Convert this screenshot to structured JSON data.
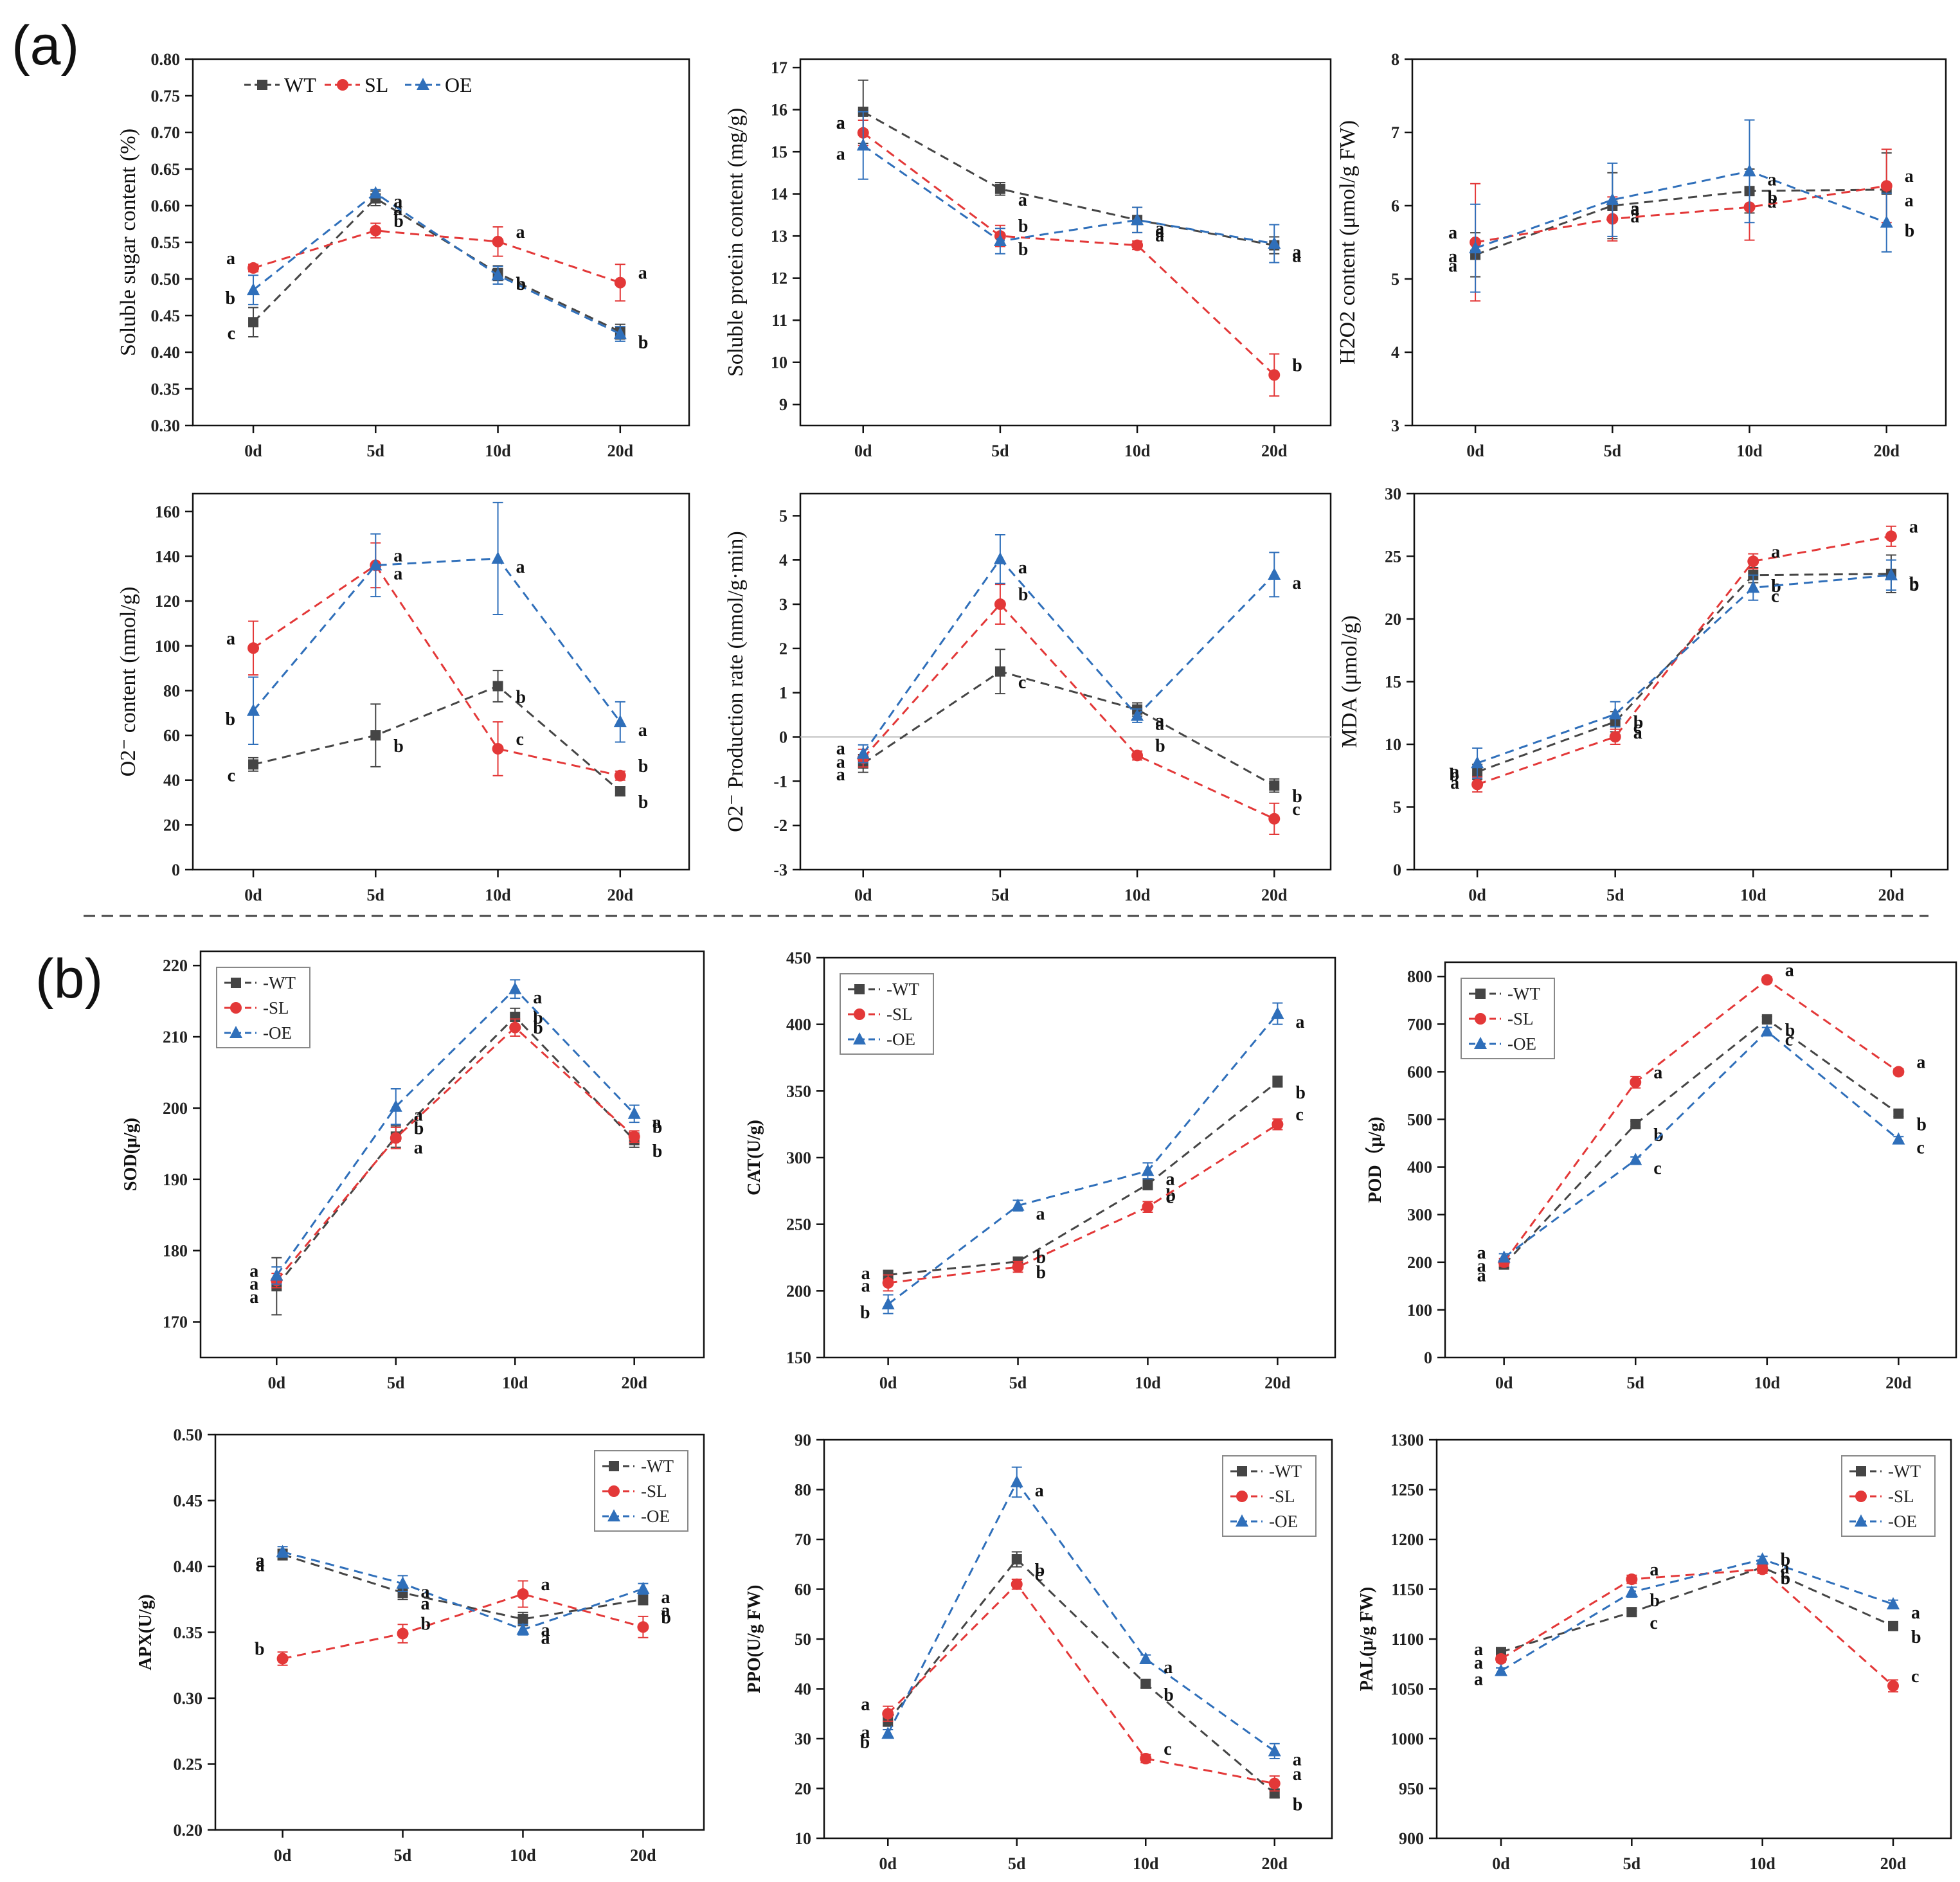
{
  "panel_labels": {
    "a": "(a)",
    "b": "(b)"
  },
  "colors": {
    "WT": "#454545",
    "SL": "#e33838",
    "OE": "#2f6fba",
    "axis": "#111111",
    "zero_line": "#bbbbbb",
    "divider": "#444444"
  },
  "chart_data": [
    {
      "type": "line",
      "title": "",
      "xlabel": "",
      "ylabel": "Soluble sugar content (%)",
      "categories": [
        "0d",
        "5d",
        "10d",
        "20d"
      ],
      "ylim": [
        0.3,
        0.8
      ],
      "yticks": [
        "0.30",
        "0.35",
        "0.40",
        "0.45",
        "0.50",
        "0.55",
        "0.60",
        "0.65",
        "0.70",
        "0.75",
        "0.80"
      ],
      "series": [
        {
          "name": "WT",
          "values": [
            0.441,
            0.61,
            0.508,
            0.428
          ],
          "errors": [
            0.02,
            0.01,
            0.01,
            0.01
          ],
          "letters": [
            "c",
            "a",
            "b",
            "b"
          ]
        },
        {
          "name": "SL",
          "values": [
            0.515,
            0.566,
            0.551,
            0.495
          ],
          "errors": [
            0.005,
            0.01,
            0.02,
            0.025
          ],
          "letters": [
            "a",
            "b",
            "a",
            "a"
          ]
        },
        {
          "name": "OE",
          "values": [
            0.485,
            0.617,
            0.505,
            0.425
          ],
          "errors": [
            0.02,
            0.005,
            0.012,
            0.01
          ],
          "letters": [
            "b",
            "a",
            "b",
            "b"
          ]
        }
      ],
      "legend": {
        "position": "top-inline",
        "labels": [
          "WT",
          "SL",
          "OE"
        ]
      }
    },
    {
      "type": "line",
      "title": "",
      "xlabel": "",
      "ylabel": "Soluble protein content (mg/g)",
      "categories": [
        "0d",
        "5d",
        "10d",
        "20d"
      ],
      "ylim": [
        8.5,
        17.2
      ],
      "yticks": [
        "9",
        "10",
        "11",
        "12",
        "13",
        "14",
        "15",
        "16",
        "17"
      ],
      "series": [
        {
          "name": "WT",
          "values": [
            15.95,
            14.12,
            13.38,
            12.78
          ],
          "errors": [
            0.75,
            0.15,
            0.3,
            0.2
          ],
          "letters": [
            "a",
            "a",
            "a",
            "a"
          ]
        },
        {
          "name": "SL",
          "values": [
            15.45,
            13.0,
            12.78,
            9.7
          ],
          "errors": [
            0.3,
            0.25,
            0.1,
            0.5
          ],
          "letters": [
            "a",
            "b",
            "a",
            "b"
          ]
        },
        {
          "name": "OE",
          "values": [
            15.15,
            12.88,
            13.38,
            12.82
          ],
          "errors": [
            0.8,
            0.3,
            0.3,
            0.45
          ],
          "letters": [
            "a",
            "b",
            "a",
            "a"
          ]
        }
      ]
    },
    {
      "type": "line",
      "title": "",
      "xlabel": "",
      "ylabel": "H2O2 content (μmol/g FW)",
      "categories": [
        "0d",
        "5d",
        "10d",
        "20d"
      ],
      "ylim": [
        3,
        8
      ],
      "yticks": [
        "3",
        "4",
        "5",
        "6",
        "7",
        "8"
      ],
      "series": [
        {
          "name": "WT",
          "values": [
            5.33,
            6.0,
            6.2,
            6.22
          ],
          "errors": [
            0.3,
            0.45,
            0.3,
            0.5
          ],
          "letters": [
            "a",
            "a",
            "a",
            "a"
          ]
        },
        {
          "name": "SL",
          "values": [
            5.5,
            5.82,
            5.98,
            6.27
          ],
          "errors": [
            0.8,
            0.3,
            0.45,
            0.5
          ],
          "letters": [
            "a",
            "a",
            "b",
            "a"
          ]
        },
        {
          "name": "OE",
          "values": [
            5.42,
            6.08,
            6.47,
            5.77
          ],
          "errors": [
            0.6,
            0.5,
            0.7,
            0.4
          ],
          "letters": [
            "a",
            "a",
            "a",
            "b"
          ]
        }
      ]
    },
    {
      "type": "line",
      "title": "",
      "xlabel": "",
      "ylabel": "O2⁻ content (nmol/g)",
      "categories": [
        "0d",
        "5d",
        "10d",
        "20d"
      ],
      "ylim": [
        0,
        168
      ],
      "yticks": [
        "0",
        "20",
        "40",
        "60",
        "80",
        "100",
        "120",
        "140",
        "160"
      ],
      "series": [
        {
          "name": "WT",
          "values": [
            47,
            60,
            82,
            35
          ],
          "errors": [
            3,
            14,
            7,
            2
          ],
          "letters": [
            "c",
            "b",
            "b",
            "b"
          ]
        },
        {
          "name": "SL",
          "values": [
            99,
            136,
            54,
            42
          ],
          "errors": [
            12,
            10,
            12,
            2
          ],
          "letters": [
            "a",
            "a",
            "c",
            "b"
          ]
        },
        {
          "name": "OE",
          "values": [
            71,
            136,
            139,
            66
          ],
          "errors": [
            15,
            14,
            25,
            9
          ],
          "letters": [
            "b",
            "a",
            "a",
            "a"
          ]
        }
      ]
    },
    {
      "type": "line",
      "title": "",
      "xlabel": "",
      "ylabel": "O2⁻ Production rate (nmol/g·min)",
      "categories": [
        "0d",
        "5d",
        "10d",
        "20d"
      ],
      "ylim": [
        -3,
        5.5
      ],
      "yticks": [
        "-3",
        "-2",
        "-1",
        "0",
        "1",
        "2",
        "3",
        "4",
        "5"
      ],
      "zero_line": true,
      "series": [
        {
          "name": "WT",
          "values": [
            -0.6,
            1.48,
            0.62,
            -1.1
          ],
          "errors": [
            0.2,
            0.5,
            0.15,
            0.15
          ],
          "letters": [
            "a",
            "c",
            "a",
            "b"
          ]
        },
        {
          "name": "SL",
          "values": [
            -0.48,
            3.0,
            -0.42,
            -1.85
          ],
          "errors": [
            0.2,
            0.45,
            0.1,
            0.35
          ],
          "letters": [
            "a",
            "b",
            "b",
            "c"
          ]
        },
        {
          "name": "OE",
          "values": [
            -0.38,
            4.02,
            0.48,
            3.67
          ],
          "errors": [
            0.2,
            0.55,
            0.15,
            0.5
          ],
          "letters": [
            "a",
            "a",
            "a",
            "a"
          ]
        }
      ]
    },
    {
      "type": "line",
      "title": "",
      "xlabel": "",
      "ylabel": "MDA (μmol/g)",
      "categories": [
        "0d",
        "5d",
        "10d",
        "20d"
      ],
      "ylim": [
        0,
        30
      ],
      "yticks": [
        "0",
        "5",
        "10",
        "15",
        "20",
        "25",
        "30"
      ],
      "series": [
        {
          "name": "WT",
          "values": [
            7.8,
            11.8,
            23.5,
            23.6
          ],
          "errors": [
            0.6,
            0.8,
            0.6,
            1.5
          ],
          "letters": [
            "a",
            "a",
            "b",
            "b"
          ]
        },
        {
          "name": "SL",
          "values": [
            6.8,
            10.6,
            24.6,
            26.6
          ],
          "errors": [
            0.6,
            0.6,
            0.6,
            0.8
          ],
          "letters": [
            "b",
            "c",
            "a",
            "a"
          ]
        },
        {
          "name": "OE",
          "values": [
            8.5,
            12.4,
            22.5,
            23.5
          ],
          "errors": [
            1.2,
            1.0,
            1.0,
            1.2
          ],
          "letters": [
            "a",
            "b",
            "c",
            "b"
          ]
        }
      ]
    },
    {
      "type": "line",
      "title": "",
      "xlabel": "",
      "ylabel": "SOD(μ/g)",
      "categories": [
        "0d",
        "5d",
        "10d",
        "20d"
      ],
      "ylim": [
        165,
        222
      ],
      "yticks": [
        "170",
        "180",
        "190",
        "200",
        "210",
        "220"
      ],
      "series": [
        {
          "name": "WT",
          "values": [
            175,
            196,
            212.8,
            195.5
          ],
          "errors": [
            4,
            1.5,
            1.2,
            1
          ],
          "letters": [
            "a",
            "a",
            "b",
            "b"
          ]
        },
        {
          "name": "SL",
          "values": [
            175.8,
            195.8,
            211.3,
            196
          ],
          "errors": [
            1,
            1.5,
            1.2,
            0.8
          ],
          "letters": [
            "a",
            "b",
            "b",
            "b"
          ]
        },
        {
          "name": "OE",
          "values": [
            176.5,
            200.2,
            216.7,
            199.2
          ],
          "errors": [
            1.2,
            2.5,
            1.3,
            1.2
          ],
          "letters": [
            "a",
            "a",
            "a",
            "a"
          ]
        }
      ],
      "legend": {
        "position": "top-left",
        "labels": [
          "WT",
          "SL",
          "OE"
        ]
      }
    },
    {
      "type": "line",
      "title": "",
      "xlabel": "",
      "ylabel": "CAT(U/g)",
      "categories": [
        "0d",
        "5d",
        "10d",
        "20d"
      ],
      "ylim": [
        150,
        450
      ],
      "yticks": [
        "150",
        "200",
        "250",
        "300",
        "350",
        "400",
        "450"
      ],
      "series": [
        {
          "name": "WT",
          "values": [
            212,
            222,
            280,
            357
          ],
          "errors": [
            3,
            3,
            4,
            4
          ],
          "letters": [
            "a",
            "b",
            "b",
            "b"
          ]
        },
        {
          "name": "SL",
          "values": [
            206,
            218,
            263,
            325
          ],
          "errors": [
            6,
            4,
            4,
            4
          ],
          "letters": [
            "a",
            "b",
            "c",
            "c"
          ]
        },
        {
          "name": "OE",
          "values": [
            190,
            264,
            290,
            408
          ],
          "errors": [
            7,
            4,
            6,
            8
          ],
          "letters": [
            "b",
            "a",
            "a",
            "a"
          ]
        }
      ],
      "legend": {
        "position": "top-left",
        "labels": [
          "WT",
          "SL",
          "OE"
        ]
      }
    },
    {
      "type": "line",
      "title": "",
      "xlabel": "",
      "ylabel": "POD（μ/g)",
      "categories": [
        "0d",
        "5d",
        "10d",
        "20d"
      ],
      "ylim": [
        0,
        830
      ],
      "yticks": [
        "0",
        "100",
        "200",
        "300",
        "400",
        "500",
        "600",
        "700",
        "800"
      ],
      "series": [
        {
          "name": "WT",
          "values": [
            195,
            490,
            710,
            512
          ],
          "errors": [
            6,
            6,
            6,
            6
          ],
          "letters": [
            "a",
            "b",
            "b",
            "b"
          ]
        },
        {
          "name": "SL",
          "values": [
            200,
            578,
            793,
            600
          ],
          "errors": [
            8,
            12,
            6,
            6
          ],
          "letters": [
            "a",
            "a",
            "a",
            "a"
          ]
        },
        {
          "name": "OE",
          "values": [
            210,
            415,
            685,
            458
          ],
          "errors": [
            8,
            6,
            8,
            6
          ],
          "letters": [
            "a",
            "c",
            "c",
            "c"
          ]
        }
      ],
      "legend": {
        "position": "top-left",
        "labels": [
          "WT",
          "SL",
          "OE"
        ]
      }
    },
    {
      "type": "line",
      "title": "",
      "xlabel": "",
      "ylabel": "APX(U/g)",
      "categories": [
        "0d",
        "5d",
        "10d",
        "20d"
      ],
      "ylim": [
        0.2,
        0.5
      ],
      "yticks": [
        "0.20",
        "0.25",
        "0.30",
        "0.35",
        "0.40",
        "0.45",
        "0.50"
      ],
      "series": [
        {
          "name": "WT",
          "values": [
            0.409,
            0.38,
            0.36,
            0.375
          ],
          "errors": [
            0.004,
            0.005,
            0.005,
            0.004
          ],
          "letters": [
            "a",
            "a",
            "a",
            "a"
          ]
        },
        {
          "name": "SL",
          "values": [
            0.33,
            0.349,
            0.379,
            0.354
          ],
          "errors": [
            0.005,
            0.007,
            0.01,
            0.008
          ],
          "letters": [
            "b",
            "b",
            "a",
            "b"
          ]
        },
        {
          "name": "OE",
          "values": [
            0.411,
            0.387,
            0.352,
            0.383
          ],
          "errors": [
            0.004,
            0.006,
            0.004,
            0.004
          ],
          "letters": [
            "a",
            "a",
            "a",
            "a"
          ]
        }
      ],
      "legend": {
        "position": "top-right",
        "labels": [
          "WT",
          "SL",
          "OE"
        ]
      }
    },
    {
      "type": "line",
      "title": "",
      "xlabel": "",
      "ylabel": "PPO(U/g FW)",
      "categories": [
        "0d",
        "5d",
        "10d",
        "20d"
      ],
      "ylim": [
        10,
        90
      ],
      "yticks": [
        "10",
        "20",
        "30",
        "40",
        "50",
        "60",
        "70",
        "80",
        "90"
      ],
      "series": [
        {
          "name": "WT",
          "values": [
            33.5,
            66,
            41,
            19
          ],
          "errors": [
            1,
            1.5,
            0.8,
            0.8
          ],
          "letters": [
            "a",
            "b",
            "b",
            "b"
          ]
        },
        {
          "name": "SL",
          "values": [
            35,
            61,
            26,
            21
          ],
          "errors": [
            1.5,
            1,
            0.8,
            1.5
          ],
          "letters": [
            "a",
            "c",
            "c",
            "a"
          ]
        },
        {
          "name": "OE",
          "values": [
            31,
            81.5,
            46,
            27.5
          ],
          "errors": [
            0.8,
            3,
            0.8,
            1.5
          ],
          "letters": [
            "b",
            "a",
            "a",
            "a"
          ]
        }
      ],
      "legend": {
        "position": "top-right",
        "labels": [
          "WT",
          "SL",
          "OE"
        ]
      }
    },
    {
      "type": "line",
      "title": "",
      "xlabel": "",
      "ylabel": "PAL(μ/g FW)",
      "categories": [
        "0d",
        "5d",
        "10d",
        "20d"
      ],
      "ylim": [
        900,
        1300
      ],
      "yticks": [
        "900",
        "950",
        "1000",
        "1050",
        "1100",
        "1150",
        "1200",
        "1250",
        "1300"
      ],
      "series": [
        {
          "name": "WT",
          "values": [
            1087,
            1127,
            1172,
            1113
          ],
          "errors": [
            3,
            4,
            3,
            4
          ],
          "letters": [
            "a",
            "c",
            "b",
            "b"
          ]
        },
        {
          "name": "SL",
          "values": [
            1080,
            1160,
            1170,
            1053
          ],
          "errors": [
            3,
            4,
            4,
            6
          ],
          "letters": [
            "a",
            "a",
            "b",
            "c"
          ]
        },
        {
          "name": "OE",
          "values": [
            1068,
            1147,
            1180,
            1135
          ],
          "errors": [
            3,
            5,
            3,
            4
          ],
          "letters": [
            "a",
            "b",
            "a",
            "a"
          ]
        }
      ],
      "legend": {
        "position": "top-right",
        "labels": [
          "WT",
          "SL",
          "OE"
        ]
      }
    }
  ]
}
